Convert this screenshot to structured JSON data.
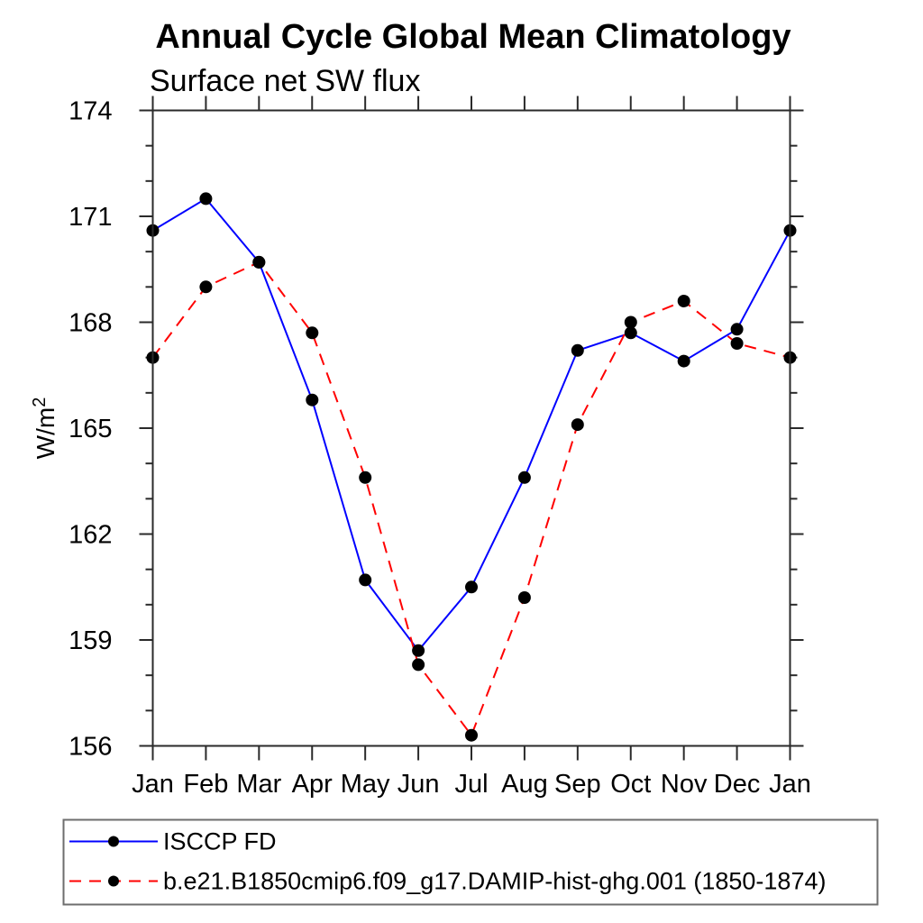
{
  "page": {
    "background": "#ffffff"
  },
  "chart_data": {
    "type": "line",
    "title": "Annual Cycle Global Mean Climatology",
    "subtitle": "Surface net SW flux",
    "ylabel_base": "W/m",
    "ylabel_superscript": "2",
    "categories": [
      "Jan",
      "Feb",
      "Mar",
      "Apr",
      "May",
      "Jun",
      "Jul",
      "Aug",
      "Sep",
      "Oct",
      "Nov",
      "Dec",
      "Jan"
    ],
    "ylim": [
      156,
      174
    ],
    "ytick_major_step": 3,
    "ytick_minor_step": 1,
    "grid": false,
    "legend_position": "bottom-left-box",
    "frame_color": "#2a2a2a",
    "marker_color": "#000000",
    "legend_border_color": "#6e6e6e",
    "series": [
      {
        "name": "ISCCP FD",
        "line": "solid",
        "color": "#0000ff",
        "values": [
          170.6,
          171.5,
          169.7,
          165.8,
          160.7,
          158.7,
          160.5,
          163.6,
          167.2,
          167.7,
          166.9,
          167.8,
          170.6
        ]
      },
      {
        "name": "b.e21.B1850cmip6.f09_g17.DAMIP-hist-ghg.001 (1850-1874)",
        "line": "dashed",
        "color": "#ff0000",
        "values": [
          167.0,
          169.0,
          169.7,
          167.7,
          163.6,
          158.3,
          156.3,
          160.2,
          165.1,
          168.0,
          168.6,
          167.4,
          167.0
        ]
      }
    ]
  }
}
